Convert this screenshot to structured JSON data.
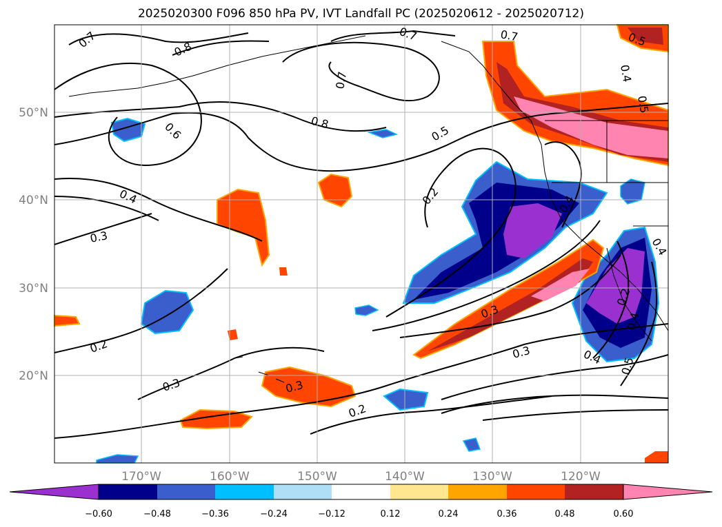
{
  "title": "2025020300 F096 850 hPa PV, IVT Landfall PC (2025020612 - 2025020712)",
  "map": {
    "lat_labels": [
      "50°N",
      "40°N",
      "30°N",
      "20°N"
    ],
    "lon_labels": [
      "170°W",
      "160°W",
      "150°W",
      "140°W",
      "130°W",
      "120°W"
    ],
    "contour_labels": [
      "0.7",
      "0.8",
      "0.7",
      "0.7",
      "0.5",
      "0.4",
      "0.5",
      "0.7",
      "0.6",
      "0.8",
      "0.5",
      "0.4",
      "0.3",
      "0.2",
      "0.3",
      "0.2",
      "0.2",
      "0.3",
      "0.3",
      "0.3",
      "0.4",
      "0.5",
      "0.4",
      "0.2",
      "0.4",
      "0.4"
    ]
  },
  "colorbar": {
    "ticks": [
      "−0.60",
      "−0.48",
      "−0.36",
      "−0.24",
      "−0.12",
      "0.12",
      "0.24",
      "0.36",
      "0.48",
      "0.60"
    ],
    "colors": [
      "#9b30d0",
      "#00008b",
      "#3a5fcd",
      "#00bfff",
      "#aedff7",
      "#ffffff",
      "#ffe68f",
      "#ffa500",
      "#ff4500",
      "#b22222",
      "#ff85b0"
    ]
  },
  "colors": {
    "neg_strong": "#9b30d0",
    "neg_2": "#00008b",
    "neg_3": "#3a5fcd",
    "neg_4": "#00bfff",
    "neg_5": "#aedff7",
    "pos_5": "#ffe68f",
    "pos_4": "#ffa500",
    "pos_3": "#ff4500",
    "pos_2": "#b22222",
    "pos_strong": "#ff85b0",
    "grid": "#b0b0b0",
    "axis_label": "#808080"
  }
}
